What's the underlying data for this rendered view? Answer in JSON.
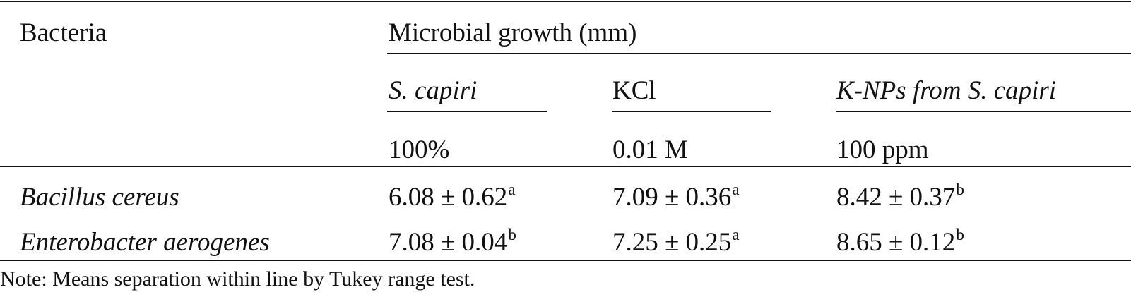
{
  "table": {
    "header": {
      "bacteria_label": "Bacteria",
      "group_label": "Microbial growth (mm)",
      "columns": [
        {
          "name": "S. capiri",
          "concentration": "100%"
        },
        {
          "name": "KCl",
          "concentration": "0.01 M"
        },
        {
          "name": "K-NPs from S. capiri",
          "concentration": "100 ppm"
        }
      ]
    },
    "rows": [
      {
        "bacteria": "Bacillus cereus",
        "values": [
          {
            "mean_sd": "6.08 ± 0.62",
            "group": "a"
          },
          {
            "mean_sd": "7.09 ± 0.36",
            "group": "a"
          },
          {
            "mean_sd": "8.42 ± 0.37",
            "group": "b"
          }
        ]
      },
      {
        "bacteria": "Enterobacter aerogenes",
        "values": [
          {
            "mean_sd": "7.08 ± 0.04",
            "group": "b"
          },
          {
            "mean_sd": "7.25 ± 0.25",
            "group": "a"
          },
          {
            "mean_sd": "8.65 ± 0.12",
            "group": "b"
          }
        ]
      }
    ]
  },
  "note": "Note: Means separation within line by Tukey range test."
}
